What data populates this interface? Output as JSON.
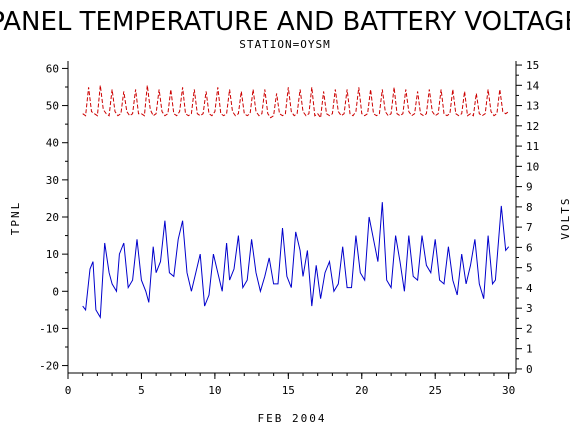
{
  "chart_data": {
    "type": "line",
    "title": "PANEL TEMPERATURE AND BATTERY VOLTAGE",
    "subtitle": "STATION=OYSM",
    "xlabel": "FEB 2004",
    "ylabel_left": "TPNL",
    "ylabel_right": "VOLTS",
    "xlim": [
      0,
      30.5
    ],
    "ylim_left": [
      -22,
      62
    ],
    "ylim_right": [
      -0.2,
      15.2
    ],
    "x_ticks": [
      0,
      5,
      10,
      15,
      20,
      25,
      30
    ],
    "y_left_ticks": [
      -20,
      -10,
      0,
      10,
      20,
      30,
      40,
      50,
      60
    ],
    "y_right_ticks": [
      0,
      1,
      2,
      3,
      4,
      5,
      6,
      7,
      8,
      9,
      10,
      11,
      12,
      13,
      14,
      15
    ],
    "grid": false,
    "series": [
      {
        "axis": "left",
        "color": "#0000cc",
        "dash": "solid",
        "points": [
          [
            1.0,
            -4
          ],
          [
            1.2,
            -5
          ],
          [
            1.5,
            6
          ],
          [
            1.7,
            8
          ],
          [
            1.9,
            -5
          ],
          [
            2.2,
            -7
          ],
          [
            2.5,
            13
          ],
          [
            2.8,
            5
          ],
          [
            3.0,
            2
          ],
          [
            3.3,
            0
          ],
          [
            3.5,
            10
          ],
          [
            3.8,
            13
          ],
          [
            4.1,
            1
          ],
          [
            4.4,
            3
          ],
          [
            4.7,
            14
          ],
          [
            5.0,
            3
          ],
          [
            5.3,
            0
          ],
          [
            5.5,
            -3
          ],
          [
            5.8,
            12
          ],
          [
            6.0,
            5
          ],
          [
            6.3,
            8
          ],
          [
            6.6,
            19
          ],
          [
            6.9,
            5
          ],
          [
            7.2,
            4
          ],
          [
            7.5,
            14
          ],
          [
            7.8,
            19
          ],
          [
            8.1,
            5
          ],
          [
            8.4,
            0
          ],
          [
            8.7,
            5
          ],
          [
            9.0,
            10
          ],
          [
            9.3,
            -4
          ],
          [
            9.6,
            -1
          ],
          [
            9.9,
            10
          ],
          [
            10.2,
            5
          ],
          [
            10.5,
            0
          ],
          [
            10.8,
            13
          ],
          [
            11.0,
            3
          ],
          [
            11.3,
            6
          ],
          [
            11.6,
            15
          ],
          [
            11.9,
            1
          ],
          [
            12.2,
            3
          ],
          [
            12.5,
            14
          ],
          [
            12.8,
            5
          ],
          [
            13.1,
            0
          ],
          [
            13.4,
            4
          ],
          [
            13.7,
            9
          ],
          [
            14.0,
            2
          ],
          [
            14.3,
            2
          ],
          [
            14.6,
            17
          ],
          [
            14.9,
            4
          ],
          [
            15.2,
            1
          ],
          [
            15.5,
            16
          ],
          [
            15.8,
            11
          ],
          [
            16.0,
            4
          ],
          [
            16.3,
            11
          ],
          [
            16.6,
            -4
          ],
          [
            16.9,
            7
          ],
          [
            17.2,
            -2
          ],
          [
            17.5,
            5
          ],
          [
            17.8,
            8
          ],
          [
            18.1,
            0
          ],
          [
            18.4,
            2
          ],
          [
            18.7,
            12
          ],
          [
            19.0,
            1
          ],
          [
            19.3,
            1
          ],
          [
            19.6,
            15
          ],
          [
            19.9,
            5
          ],
          [
            20.2,
            3
          ],
          [
            20.5,
            20
          ],
          [
            20.8,
            14
          ],
          [
            21.1,
            8
          ],
          [
            21.4,
            24
          ],
          [
            21.7,
            3
          ],
          [
            22.0,
            1
          ],
          [
            22.3,
            15
          ],
          [
            22.6,
            8
          ],
          [
            22.9,
            0
          ],
          [
            23.2,
            15
          ],
          [
            23.5,
            4
          ],
          [
            23.8,
            3
          ],
          [
            24.1,
            15
          ],
          [
            24.4,
            7
          ],
          [
            24.7,
            5
          ],
          [
            25.0,
            14
          ],
          [
            25.3,
            3
          ],
          [
            25.6,
            2
          ],
          [
            25.9,
            12
          ],
          [
            26.2,
            3
          ],
          [
            26.5,
            -1
          ],
          [
            26.8,
            10
          ],
          [
            27.1,
            2
          ],
          [
            27.4,
            7
          ],
          [
            27.7,
            14
          ],
          [
            28.0,
            2
          ],
          [
            28.3,
            -2
          ],
          [
            28.6,
            15
          ],
          [
            28.9,
            2
          ],
          [
            29.1,
            3
          ],
          [
            29.5,
            23
          ],
          [
            29.8,
            11
          ],
          [
            30.0,
            12
          ]
        ]
      },
      {
        "axis": "right",
        "color": "#cc0000",
        "dash": "dashed",
        "points": [
          [
            1.0,
            12.6
          ],
          [
            1.2,
            12.5
          ],
          [
            1.4,
            13.9
          ],
          [
            1.6,
            12.7
          ],
          [
            1.8,
            12.6
          ],
          [
            2.0,
            12.5
          ],
          [
            2.2,
            14.0
          ],
          [
            2.4,
            12.8
          ],
          [
            2.6,
            12.6
          ],
          [
            2.8,
            12.5
          ],
          [
            3.0,
            13.8
          ],
          [
            3.2,
            12.7
          ],
          [
            3.4,
            12.5
          ],
          [
            3.6,
            12.6
          ],
          [
            3.8,
            13.7
          ],
          [
            4.0,
            12.7
          ],
          [
            4.2,
            12.5
          ],
          [
            4.4,
            12.6
          ],
          [
            4.6,
            13.8
          ],
          [
            4.8,
            12.6
          ],
          [
            5.0,
            12.6
          ],
          [
            5.2,
            12.5
          ],
          [
            5.4,
            14.0
          ],
          [
            5.6,
            12.8
          ],
          [
            5.8,
            12.5
          ],
          [
            6.0,
            12.6
          ],
          [
            6.2,
            13.8
          ],
          [
            6.4,
            12.7
          ],
          [
            6.6,
            12.5
          ],
          [
            6.8,
            12.6
          ],
          [
            7.0,
            13.8
          ],
          [
            7.2,
            12.6
          ],
          [
            7.4,
            12.5
          ],
          [
            7.6,
            12.7
          ],
          [
            7.8,
            13.9
          ],
          [
            8.0,
            12.6
          ],
          [
            8.2,
            12.5
          ],
          [
            8.4,
            12.6
          ],
          [
            8.6,
            13.8
          ],
          [
            8.8,
            12.6
          ],
          [
            9.0,
            12.5
          ],
          [
            9.2,
            12.6
          ],
          [
            9.4,
            13.7
          ],
          [
            9.6,
            12.6
          ],
          [
            9.8,
            12.5
          ],
          [
            10.0,
            12.7
          ],
          [
            10.2,
            13.9
          ],
          [
            10.4,
            12.6
          ],
          [
            10.6,
            12.5
          ],
          [
            10.8,
            12.6
          ],
          [
            11.0,
            13.8
          ],
          [
            11.2,
            12.7
          ],
          [
            11.4,
            12.5
          ],
          [
            11.6,
            12.6
          ],
          [
            11.8,
            13.7
          ],
          [
            12.0,
            12.6
          ],
          [
            12.2,
            12.5
          ],
          [
            12.4,
            12.6
          ],
          [
            12.6,
            13.8
          ],
          [
            12.8,
            12.7
          ],
          [
            13.0,
            12.5
          ],
          [
            13.2,
            12.6
          ],
          [
            13.4,
            13.8
          ],
          [
            13.6,
            12.6
          ],
          [
            13.8,
            12.4
          ],
          [
            14.0,
            12.5
          ],
          [
            14.2,
            13.6
          ],
          [
            14.4,
            12.6
          ],
          [
            14.6,
            12.5
          ],
          [
            14.8,
            12.6
          ],
          [
            15.0,
            13.9
          ],
          [
            15.2,
            12.7
          ],
          [
            15.4,
            12.5
          ],
          [
            15.6,
            12.6
          ],
          [
            15.8,
            13.8
          ],
          [
            16.0,
            12.7
          ],
          [
            16.2,
            12.5
          ],
          [
            16.4,
            12.6
          ],
          [
            16.6,
            13.9
          ],
          [
            16.8,
            12.5
          ],
          [
            17.0,
            12.6
          ],
          [
            17.2,
            12.4
          ],
          [
            17.4,
            13.7
          ],
          [
            17.6,
            12.6
          ],
          [
            17.8,
            12.5
          ],
          [
            18.0,
            12.6
          ],
          [
            18.2,
            13.8
          ],
          [
            18.4,
            12.7
          ],
          [
            18.6,
            12.5
          ],
          [
            18.8,
            12.6
          ],
          [
            19.0,
            13.8
          ],
          [
            19.2,
            12.6
          ],
          [
            19.4,
            12.5
          ],
          [
            19.6,
            12.7
          ],
          [
            19.8,
            13.9
          ],
          [
            20.0,
            12.6
          ],
          [
            20.2,
            12.5
          ],
          [
            20.4,
            12.6
          ],
          [
            20.6,
            13.8
          ],
          [
            20.8,
            12.6
          ],
          [
            21.0,
            12.5
          ],
          [
            21.2,
            12.6
          ],
          [
            21.4,
            13.8
          ],
          [
            21.6,
            12.7
          ],
          [
            21.8,
            12.5
          ],
          [
            22.0,
            12.6
          ],
          [
            22.2,
            13.9
          ],
          [
            22.4,
            12.6
          ],
          [
            22.6,
            12.5
          ],
          [
            22.8,
            12.6
          ],
          [
            23.0,
            13.8
          ],
          [
            23.2,
            12.7
          ],
          [
            23.4,
            12.5
          ],
          [
            23.6,
            12.6
          ],
          [
            23.8,
            13.7
          ],
          [
            24.0,
            12.6
          ],
          [
            24.2,
            12.5
          ],
          [
            24.4,
            12.6
          ],
          [
            24.6,
            13.8
          ],
          [
            24.8,
            12.7
          ],
          [
            25.0,
            12.5
          ],
          [
            25.2,
            12.6
          ],
          [
            25.4,
            13.8
          ],
          [
            25.6,
            12.6
          ],
          [
            25.8,
            12.5
          ],
          [
            26.0,
            12.6
          ],
          [
            26.2,
            13.8
          ],
          [
            26.4,
            12.6
          ],
          [
            26.6,
            12.5
          ],
          [
            26.8,
            12.6
          ],
          [
            27.0,
            13.7
          ],
          [
            27.2,
            12.5
          ],
          [
            27.4,
            12.6
          ],
          [
            27.6,
            12.5
          ],
          [
            27.8,
            13.6
          ],
          [
            28.0,
            12.6
          ],
          [
            28.2,
            12.5
          ],
          [
            28.4,
            12.6
          ],
          [
            28.6,
            13.8
          ],
          [
            28.8,
            12.7
          ],
          [
            29.0,
            12.5
          ],
          [
            29.2,
            12.6
          ],
          [
            29.4,
            13.8
          ],
          [
            29.6,
            12.7
          ],
          [
            29.8,
            12.6
          ],
          [
            30.0,
            12.7
          ]
        ]
      }
    ]
  }
}
